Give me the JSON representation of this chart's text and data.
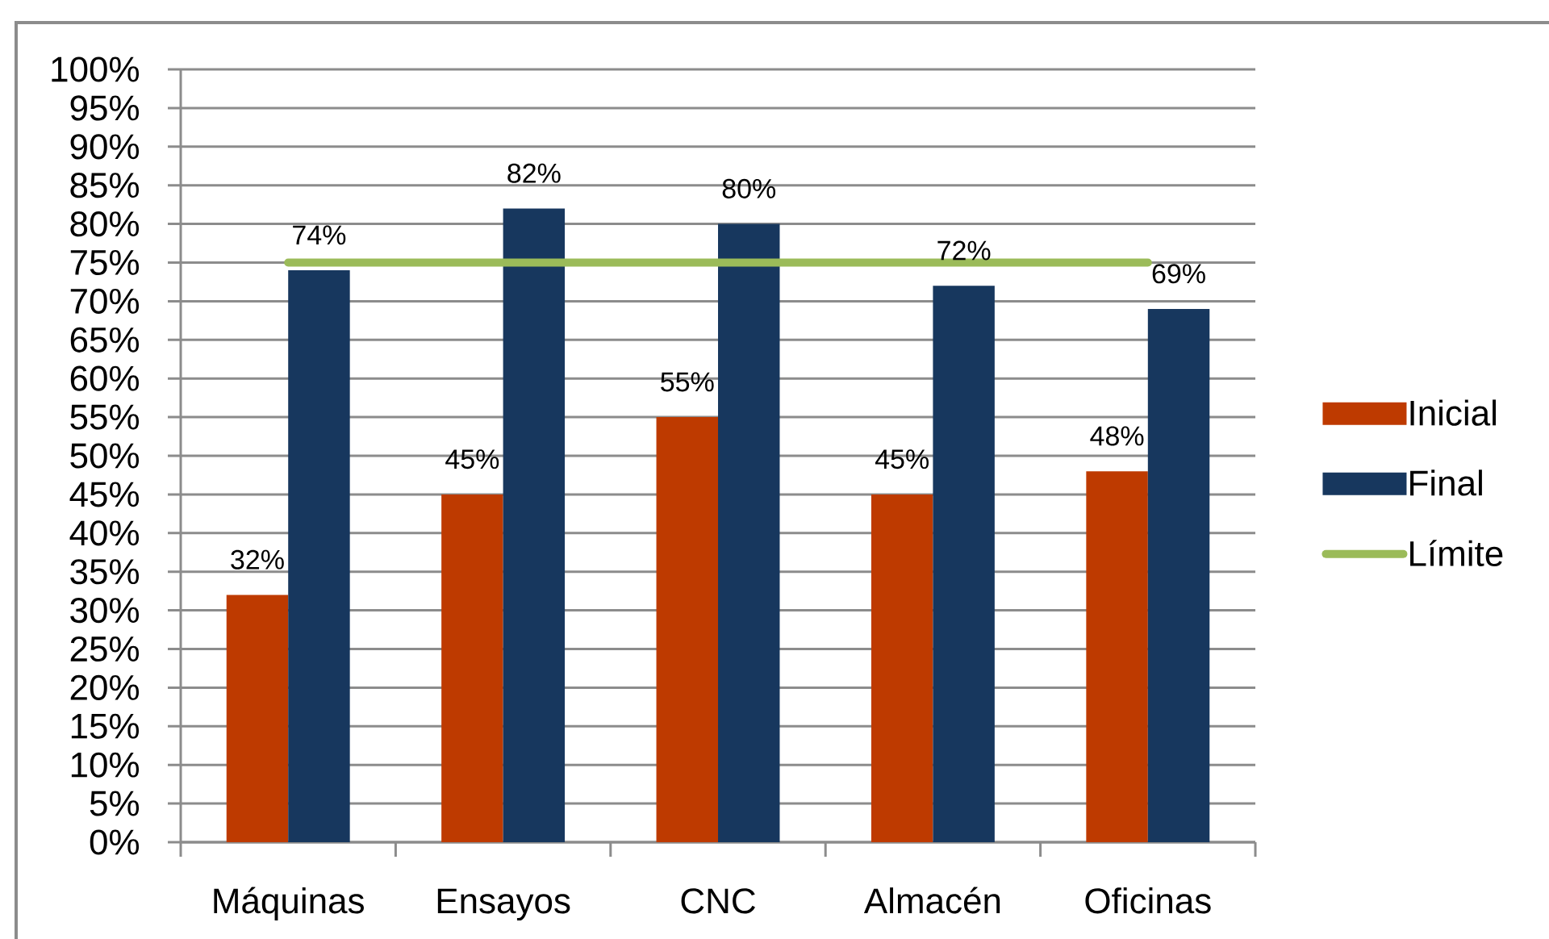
{
  "chart_data": {
    "type": "bar",
    "categories": [
      "Máquinas",
      "Ensayos",
      "CNC",
      "Almacén",
      "Oficinas"
    ],
    "series": [
      {
        "name": "Inicial",
        "color": "#be3a00",
        "values": [
          32,
          45,
          55,
          45,
          48
        ],
        "value_labels": [
          "32%",
          "45%",
          "55%",
          "45%",
          "48%"
        ]
      },
      {
        "name": "Final",
        "color": "#17375e",
        "values": [
          74,
          82,
          80,
          72,
          69
        ],
        "value_labels": [
          "74%",
          "82%",
          "80%",
          "72%",
          "69%"
        ]
      },
      {
        "name": "Límite",
        "type": "line",
        "color": "#9bbb59",
        "values": [
          75,
          75,
          75,
          75,
          75
        ]
      }
    ],
    "ylim": [
      0,
      100
    ],
    "yticks": [
      {
        "value": 0,
        "label": "0%"
      },
      {
        "value": 5,
        "label": "5%"
      },
      {
        "value": 10,
        "label": "10%"
      },
      {
        "value": 15,
        "label": "15%"
      },
      {
        "value": 20,
        "label": "20%"
      },
      {
        "value": 25,
        "label": "25%"
      },
      {
        "value": 30,
        "label": "30%"
      },
      {
        "value": 35,
        "label": "35%"
      },
      {
        "value": 40,
        "label": "40%"
      },
      {
        "value": 45,
        "label": "45%"
      },
      {
        "value": 50,
        "label": "50%"
      },
      {
        "value": 55,
        "label": "55%"
      },
      {
        "value": 60,
        "label": "60%"
      },
      {
        "value": 65,
        "label": "65%"
      },
      {
        "value": 70,
        "label": "70%"
      },
      {
        "value": 75,
        "label": "75%"
      },
      {
        "value": 80,
        "label": "80%"
      },
      {
        "value": 85,
        "label": "85%"
      },
      {
        "value": 90,
        "label": "90%"
      },
      {
        "value": 95,
        "label": "95%"
      },
      {
        "value": 100,
        "label": "100%"
      }
    ],
    "grid": "y",
    "legend": "right"
  }
}
